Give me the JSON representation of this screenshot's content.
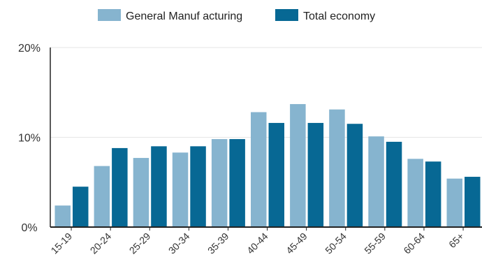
{
  "chart_data": {
    "type": "bar",
    "categories": [
      "15-19",
      "20-24",
      "25-29",
      "30-34",
      "35-39",
      "40-44",
      "45-49",
      "50-54",
      "55-59",
      "60-64",
      "65+"
    ],
    "series": [
      {
        "name": "General Manufacturing",
        "color": "#86b4cf",
        "values": [
          2.4,
          6.8,
          7.7,
          8.3,
          9.8,
          12.8,
          13.7,
          13.1,
          10.1,
          7.6,
          5.4
        ]
      },
      {
        "name": "Total economy",
        "color": "#076894",
        "values": [
          4.5,
          8.8,
          9.0,
          9.0,
          9.8,
          11.6,
          11.6,
          11.5,
          9.5,
          7.3,
          5.6
        ]
      }
    ],
    "legend_labels": [
      "General Manuf acturing",
      "Total economy"
    ],
    "legend_position": "top-center",
    "y_ticks": [
      {
        "value": 0,
        "label": "0%"
      },
      {
        "value": 10,
        "label": "10%"
      },
      {
        "value": 20,
        "label": "20%"
      }
    ],
    "ylim": [
      0,
      20
    ],
    "grid": true,
    "title": "",
    "xlabel": "",
    "ylabel": ""
  }
}
